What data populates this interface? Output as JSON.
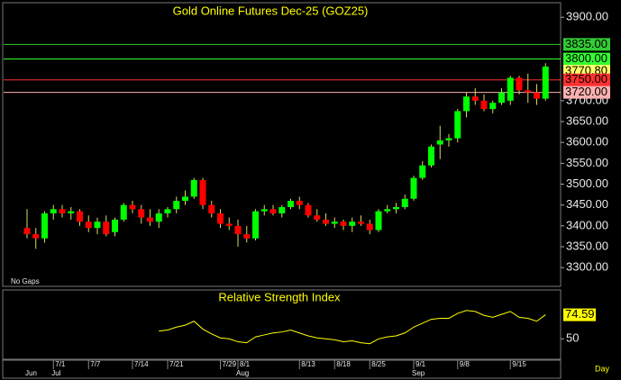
{
  "chart_data": [
    {
      "type": "candlestick",
      "title": "Gold Online Futures Dec-25 (GOZ25)",
      "annotation": "No Gaps",
      "xlabel": "Day",
      "categories": [
        null,
        null,
        null,
        "7/1",
        null,
        null,
        null,
        "7/7",
        null,
        null,
        null,
        null,
        "7/14",
        null,
        null,
        null,
        "7/21",
        null,
        null,
        null,
        null,
        null,
        "7/29",
        null,
        "8/1",
        null,
        null,
        null,
        null,
        null,
        null,
        "8/13",
        null,
        null,
        null,
        "8/18",
        null,
        null,
        null,
        "8/25",
        null,
        null,
        null,
        null,
        "9/1",
        null,
        null,
        null,
        null,
        "9/8",
        null,
        null,
        null,
        null,
        null,
        "9/15",
        null,
        null,
        null,
        null
      ],
      "months": [
        "Jun",
        null,
        null,
        "Jul",
        null,
        null,
        null,
        null,
        null,
        null,
        null,
        null,
        null,
        null,
        null,
        null,
        null,
        null,
        null,
        null,
        null,
        null,
        null,
        null,
        "Aug",
        null,
        null,
        null,
        null,
        null,
        null,
        null,
        null,
        null,
        null,
        null,
        null,
        null,
        null,
        null,
        null,
        null,
        null,
        null,
        "Sep",
        null,
        null,
        null,
        null,
        null,
        null,
        null,
        null,
        null,
        null,
        null,
        null,
        null,
        null,
        null
      ],
      "open": [
        3395,
        3380,
        3370,
        3430,
        3440,
        3430,
        3435,
        3410,
        3395,
        3410,
        3385,
        3415,
        3450,
        3440,
        3420,
        3410,
        3430,
        3440,
        3460,
        3470,
        3510,
        3450,
        3430,
        3405,
        3400,
        3380,
        3370,
        3435,
        3440,
        3430,
        3445,
        3460,
        3450,
        3425,
        3415,
        3405,
        3410,
        3400,
        3410,
        3405,
        3390,
        3435,
        3440,
        3445,
        3465,
        3515,
        3545,
        3595,
        3605,
        3610,
        3675,
        3710,
        3700,
        3680,
        3695,
        3700,
        3755,
        3725,
        3720,
        3705
      ],
      "high": [
        3440,
        3395,
        3435,
        3450,
        3450,
        3445,
        3440,
        3425,
        3420,
        3425,
        3420,
        3455,
        3460,
        3450,
        3440,
        3440,
        3445,
        3470,
        3485,
        3515,
        3515,
        3460,
        3440,
        3420,
        3415,
        3400,
        3440,
        3450,
        3450,
        3450,
        3465,
        3470,
        3455,
        3440,
        3430,
        3420,
        3415,
        3420,
        3425,
        3415,
        3440,
        3450,
        3455,
        3475,
        3520,
        3555,
        3595,
        3640,
        3620,
        3680,
        3720,
        3730,
        3715,
        3700,
        3730,
        3760,
        3760,
        3765,
        3740,
        3790
      ],
      "low": [
        3370,
        3345,
        3360,
        3415,
        3420,
        3415,
        3400,
        3385,
        3380,
        3375,
        3375,
        3410,
        3430,
        3405,
        3400,
        3395,
        3420,
        3430,
        3450,
        3465,
        3440,
        3420,
        3395,
        3390,
        3350,
        3360,
        3365,
        3425,
        3425,
        3420,
        3440,
        3440,
        3420,
        3410,
        3400,
        3395,
        3390,
        3385,
        3400,
        3380,
        3385,
        3430,
        3430,
        3440,
        3460,
        3510,
        3540,
        3560,
        3590,
        3600,
        3660,
        3690,
        3675,
        3670,
        3690,
        3690,
        3715,
        3695,
        3690,
        3700
      ],
      "close": [
        3380,
        3370,
        3430,
        3440,
        3430,
        3435,
        3410,
        3395,
        3410,
        3380,
        3415,
        3450,
        3440,
        3420,
        3410,
        3430,
        3440,
        3460,
        3470,
        3510,
        3450,
        3430,
        3405,
        3400,
        3380,
        3370,
        3435,
        3440,
        3430,
        3445,
        3460,
        3450,
        3425,
        3415,
        3405,
        3410,
        3400,
        3410,
        3405,
        3390,
        3435,
        3440,
        3445,
        3465,
        3515,
        3545,
        3590,
        3605,
        3610,
        3675,
        3710,
        3700,
        3680,
        3695,
        3720,
        3755,
        3725,
        3720,
        3705,
        3782
      ],
      "up_color": "#00ff00",
      "down_color": "#ff0000",
      "wick_color": "#d8d860",
      "ylim": [
        3255,
        3935
      ],
      "yticks": [
        {
          "value": 3300,
          "label": "3300.00"
        },
        {
          "value": 3350,
          "label": "3350.00"
        },
        {
          "value": 3400,
          "label": "3400.00"
        },
        {
          "value": 3450,
          "label": "3450.00"
        },
        {
          "value": 3500,
          "label": "3500.00"
        },
        {
          "value": 3550,
          "label": "3550.00"
        },
        {
          "value": 3600,
          "label": "3600.00"
        },
        {
          "value": 3650,
          "label": "3650.00"
        },
        {
          "value": 3700,
          "label": "3700.00"
        },
        {
          "value": 3900,
          "label": "3900.00"
        }
      ],
      "levels": [
        {
          "value": 3835,
          "label": "3835.00",
          "color": "#33cc33",
          "line": true
        },
        {
          "value": 3800,
          "label": "3800.00",
          "color": "#33ff33",
          "line": true
        },
        {
          "value": 3770.8,
          "label": "3770.80",
          "color": "#ffff66",
          "line": false
        },
        {
          "value": 3750,
          "label": "3750.00",
          "color": "#ff3030",
          "line": true
        },
        {
          "value": 3720,
          "label": "3720.00",
          "color": "#ffb0b0",
          "line": true
        }
      ]
    },
    {
      "type": "line",
      "title": "Relative Strength Index",
      "color": "#ffff00",
      "values": [
        null,
        null,
        null,
        null,
        null,
        null,
        null,
        null,
        null,
        null,
        null,
        null,
        null,
        null,
        null,
        58,
        59,
        62,
        64,
        68,
        60,
        55,
        51,
        50,
        47,
        46,
        52,
        54,
        56,
        57,
        59,
        56,
        53,
        51,
        50,
        49,
        47,
        48,
        46,
        45,
        50,
        52,
        53,
        56,
        62,
        66,
        70,
        71,
        71,
        76,
        79,
        78,
        74,
        72,
        75,
        78,
        72,
        71,
        68,
        74.59
      ],
      "ylim": [
        30,
        100
      ],
      "yticks": [
        50
      ]
    }
  ]
}
